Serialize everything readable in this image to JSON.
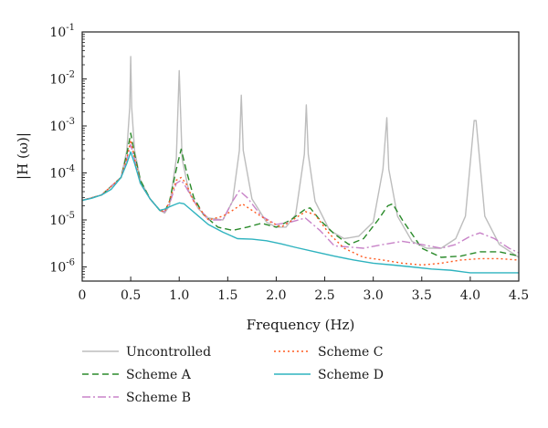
{
  "chart_data": {
    "type": "line",
    "xlabel": "Frequency (Hz)",
    "ylabel": "|H (ω)|",
    "xlim": [
      0,
      4.5
    ],
    "ylim": [
      5e-07,
      0.1
    ],
    "yscale": "log",
    "grid": false,
    "legend_placement": "below",
    "x_ticks": [
      {
        "value": 0,
        "label": "0"
      },
      {
        "value": 0.5,
        "label": "0.5"
      },
      {
        "value": 1.0,
        "label": "1.0"
      },
      {
        "value": 1.5,
        "label": "1.5"
      },
      {
        "value": 2.0,
        "label": "2.0"
      },
      {
        "value": 2.5,
        "label": "2.5"
      },
      {
        "value": 3.0,
        "label": "3.0"
      },
      {
        "value": 3.5,
        "label": "3.5"
      },
      {
        "value": 4.0,
        "label": "4.0"
      },
      {
        "value": 4.5,
        "label": "4.5"
      }
    ],
    "y_ticks": [
      {
        "value": 1e-06,
        "base": "10",
        "exp": "-6"
      },
      {
        "value": 1e-05,
        "base": "10",
        "exp": "-5"
      },
      {
        "value": 0.0001,
        "base": "10",
        "exp": "-4"
      },
      {
        "value": 0.001,
        "base": "10",
        "exp": "-3"
      },
      {
        "value": 0.01,
        "base": "10",
        "exp": "-2"
      },
      {
        "value": 0.1,
        "base": "10",
        "exp": "-1"
      }
    ],
    "series": [
      {
        "name": "Uncontrolled",
        "color": "#bdbdbd",
        "dash": "solid",
        "x": [
          0,
          0.2,
          0.4,
          0.46,
          0.49,
          0.5,
          0.51,
          0.54,
          0.6,
          0.7,
          0.8,
          0.85,
          0.9,
          0.97,
          1.0,
          1.03,
          1.1,
          1.2,
          1.3,
          1.45,
          1.55,
          1.62,
          1.64,
          1.66,
          1.75,
          1.9,
          2.0,
          2.1,
          2.2,
          2.29,
          2.31,
          2.33,
          2.4,
          2.55,
          2.7,
          2.85,
          3.0,
          3.1,
          3.14,
          3.16,
          3.25,
          3.4,
          3.55,
          3.7,
          3.85,
          3.95,
          4.04,
          4.06,
          4.15,
          4.3,
          4.5
        ],
        "y": [
          2.6e-05,
          3.4e-05,
          8e-05,
          0.0003,
          0.0025,
          0.03,
          0.0025,
          0.0003,
          7e-05,
          2.8e-05,
          1.6e-05,
          1.4e-05,
          2e-05,
          0.0002,
          0.015,
          0.0002,
          4e-05,
          1.7e-05,
          1.1e-05,
          1e-05,
          2.5e-05,
          0.0003,
          0.0045,
          0.0003,
          2.8e-05,
          9e-06,
          7e-06,
          7e-06,
          1.3e-05,
          0.00025,
          0.0028,
          0.00025,
          2.5e-05,
          6e-06,
          4e-06,
          4.5e-06,
          9e-06,
          0.00012,
          0.0015,
          0.00012,
          1.2e-05,
          3.5e-06,
          2.5e-06,
          2.5e-06,
          4e-06,
          1.2e-05,
          0.0013,
          0.0013,
          1.2e-05,
          3e-06,
          1.6e-06
        ]
      },
      {
        "name": "Scheme A",
        "color": "#2a8a2a",
        "dash": "7,4",
        "x": [
          0,
          0.2,
          0.4,
          0.46,
          0.5,
          0.54,
          0.6,
          0.7,
          0.8,
          0.85,
          0.9,
          0.97,
          1.02,
          1.07,
          1.15,
          1.25,
          1.4,
          1.55,
          1.7,
          1.85,
          2.0,
          2.15,
          2.3,
          2.35,
          2.45,
          2.6,
          2.75,
          2.9,
          3.05,
          3.15,
          3.2,
          3.3,
          3.5,
          3.7,
          3.9,
          4.1,
          4.3,
          4.5
        ],
        "y": [
          2.6e-05,
          3.4e-05,
          8e-05,
          0.00025,
          0.0007,
          0.00025,
          7e-05,
          2.8e-05,
          1.6e-05,
          1.5e-05,
          2.5e-05,
          0.00012,
          0.00032,
          0.00012,
          3e-05,
          1.3e-05,
          7e-06,
          6e-06,
          7e-06,
          8.5e-06,
          7e-06,
          1e-05,
          1.7e-05,
          1.8e-05,
          1e-05,
          5e-06,
          3e-06,
          4e-06,
          1e-05,
          2e-05,
          2.2e-05,
          1e-05,
          2.5e-06,
          1.6e-06,
          1.7e-06,
          2.1e-06,
          2.1e-06,
          1.7e-06
        ]
      },
      {
        "name": "Scheme B",
        "color": "#c883c8",
        "dash": "9,3,2,3",
        "x": [
          0,
          0.2,
          0.4,
          0.46,
          0.5,
          0.54,
          0.6,
          0.7,
          0.8,
          0.85,
          0.9,
          0.97,
          1.02,
          1.07,
          1.15,
          1.3,
          1.45,
          1.55,
          1.62,
          1.7,
          1.85,
          2.0,
          2.15,
          2.3,
          2.45,
          2.6,
          2.9,
          3.1,
          3.3,
          3.5,
          3.7,
          3.85,
          4.0,
          4.1,
          4.25,
          4.4,
          4.5
        ],
        "y": [
          2.6e-05,
          3.4e-05,
          8e-05,
          0.0002,
          0.0004,
          0.0002,
          6e-05,
          2.8e-05,
          1.6e-05,
          1.5e-05,
          2.2e-05,
          6e-05,
          7e-05,
          5e-05,
          2.5e-05,
          1e-05,
          1e-05,
          2.5e-05,
          4.2e-05,
          3e-05,
          1.2e-05,
          8e-06,
          9e-06,
          1.1e-05,
          6e-06,
          2.8e-06,
          2.5e-06,
          3e-06,
          3.5e-06,
          3e-06,
          2.5e-06,
          3e-06,
          4.5e-06,
          5.3e-06,
          4e-06,
          2.5e-06,
          2e-06
        ]
      },
      {
        "name": "Scheme C",
        "color": "#ff5a1f",
        "dash": "2,3",
        "x": [
          0,
          0.2,
          0.4,
          0.46,
          0.5,
          0.54,
          0.6,
          0.7,
          0.8,
          0.85,
          0.9,
          0.97,
          1.02,
          1.07,
          1.15,
          1.3,
          1.45,
          1.55,
          1.65,
          1.75,
          1.9,
          2.05,
          2.2,
          2.3,
          2.4,
          2.55,
          2.7,
          2.9,
          3.1,
          3.3,
          3.5,
          3.7,
          3.9,
          4.1,
          4.3,
          4.5
        ],
        "y": [
          2.6e-05,
          3.4e-05,
          8e-05,
          0.0002,
          0.0005,
          0.0002,
          6e-05,
          2.8e-05,
          1.6e-05,
          1.5e-05,
          2.5e-05,
          7e-05,
          8e-05,
          6e-05,
          2.5e-05,
          1e-05,
          1.2e-05,
          1.6e-05,
          2.2e-05,
          1.6e-05,
          1e-05,
          7e-06,
          1.1e-05,
          1.5e-05,
          1.3e-05,
          5e-06,
          2.5e-06,
          1.6e-06,
          1.4e-06,
          1.2e-06,
          1.1e-06,
          1.2e-06,
          1.4e-06,
          1.5e-06,
          1.5e-06,
          1.4e-06
        ]
      },
      {
        "name": "Scheme D",
        "color": "#2fb3bf",
        "dash": "solid",
        "x": [
          0,
          0.1,
          0.2,
          0.3,
          0.4,
          0.46,
          0.5,
          0.54,
          0.6,
          0.7,
          0.8,
          0.85,
          0.9,
          0.95,
          1.0,
          1.05,
          1.1,
          1.2,
          1.3,
          1.45,
          1.6,
          1.75,
          1.9,
          2.05,
          2.2,
          2.4,
          2.6,
          2.8,
          3.0,
          3.2,
          3.4,
          3.6,
          3.8,
          4.0,
          4.2,
          4.5
        ],
        "y": [
          2.6e-05,
          2.9e-05,
          3.4e-05,
          4.5e-05,
          8e-05,
          0.00016,
          0.00028,
          0.00016,
          6e-05,
          2.8e-05,
          1.6e-05,
          1.7e-05,
          1.9e-05,
          2.1e-05,
          2.3e-05,
          2.2e-05,
          1.8e-05,
          1.2e-05,
          8e-06,
          5.5e-06,
          4e-06,
          3.9e-06,
          3.6e-06,
          3.1e-06,
          2.6e-06,
          2.1e-06,
          1.7e-06,
          1.4e-06,
          1.2e-06,
          1.1e-06,
          1e-06,
          9e-07,
          8.5e-07,
          7.5e-07,
          7.5e-07,
          7.5e-07
        ]
      }
    ]
  }
}
